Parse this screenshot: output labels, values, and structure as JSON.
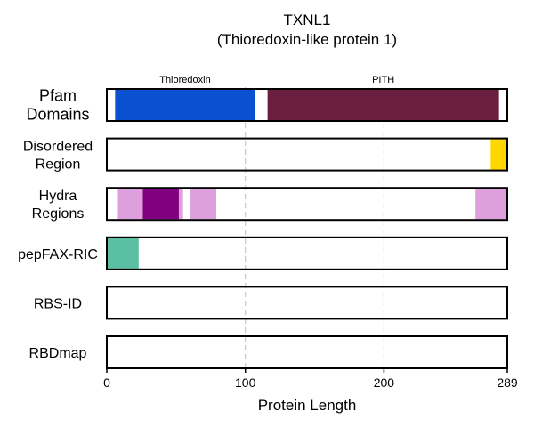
{
  "chart_data": {
    "type": "bar",
    "title_line1": "TXNL1",
    "title_line2": "(Thioredoxin-like protein 1)",
    "xlabel": "Protein Length",
    "xlim": [
      0,
      289
    ],
    "xticks": [
      {
        "value": 0,
        "label": "0"
      },
      {
        "value": 100,
        "label": "100"
      },
      {
        "value": 200,
        "label": "200"
      },
      {
        "value": 289,
        "label": "289"
      }
    ],
    "grid_lines": [
      100,
      200
    ],
    "tracks": [
      {
        "id": "pfam",
        "label_lines": [
          "Pfam",
          "Domains"
        ],
        "segments": [
          {
            "name": "Thioredoxin",
            "start": 6,
            "end": 107,
            "color": "#0a50d0"
          },
          {
            "name": "PITH",
            "start": 116,
            "end": 283,
            "color": "#6b1f40"
          }
        ]
      },
      {
        "id": "disordered",
        "label_lines": [
          "Disordered",
          "Region"
        ],
        "segments": [
          {
            "start": 277,
            "end": 289,
            "color": "#ffd700"
          }
        ]
      },
      {
        "id": "hydra",
        "label_lines": [
          "Hydra",
          "Regions"
        ],
        "segments": [
          {
            "start": 8,
            "end": 26,
            "color": "#dda0dd"
          },
          {
            "start": 26,
            "end": 52,
            "color": "#800080"
          },
          {
            "start": 52,
            "end": 55,
            "color": "#dda0dd"
          },
          {
            "start": 60,
            "end": 79,
            "color": "#dda0dd"
          },
          {
            "start": 266,
            "end": 289,
            "color": "#dda0dd"
          }
        ]
      },
      {
        "id": "pepfax",
        "label_lines": [
          "pepFAX-RIC"
        ],
        "segments": [
          {
            "start": 0,
            "end": 23,
            "color": "#5bbfa3"
          }
        ]
      },
      {
        "id": "rbsid",
        "label_lines": [
          "RBS-ID"
        ],
        "segments": []
      },
      {
        "id": "rbdmap",
        "label_lines": [
          "RBDmap"
        ],
        "segments": []
      }
    ]
  }
}
